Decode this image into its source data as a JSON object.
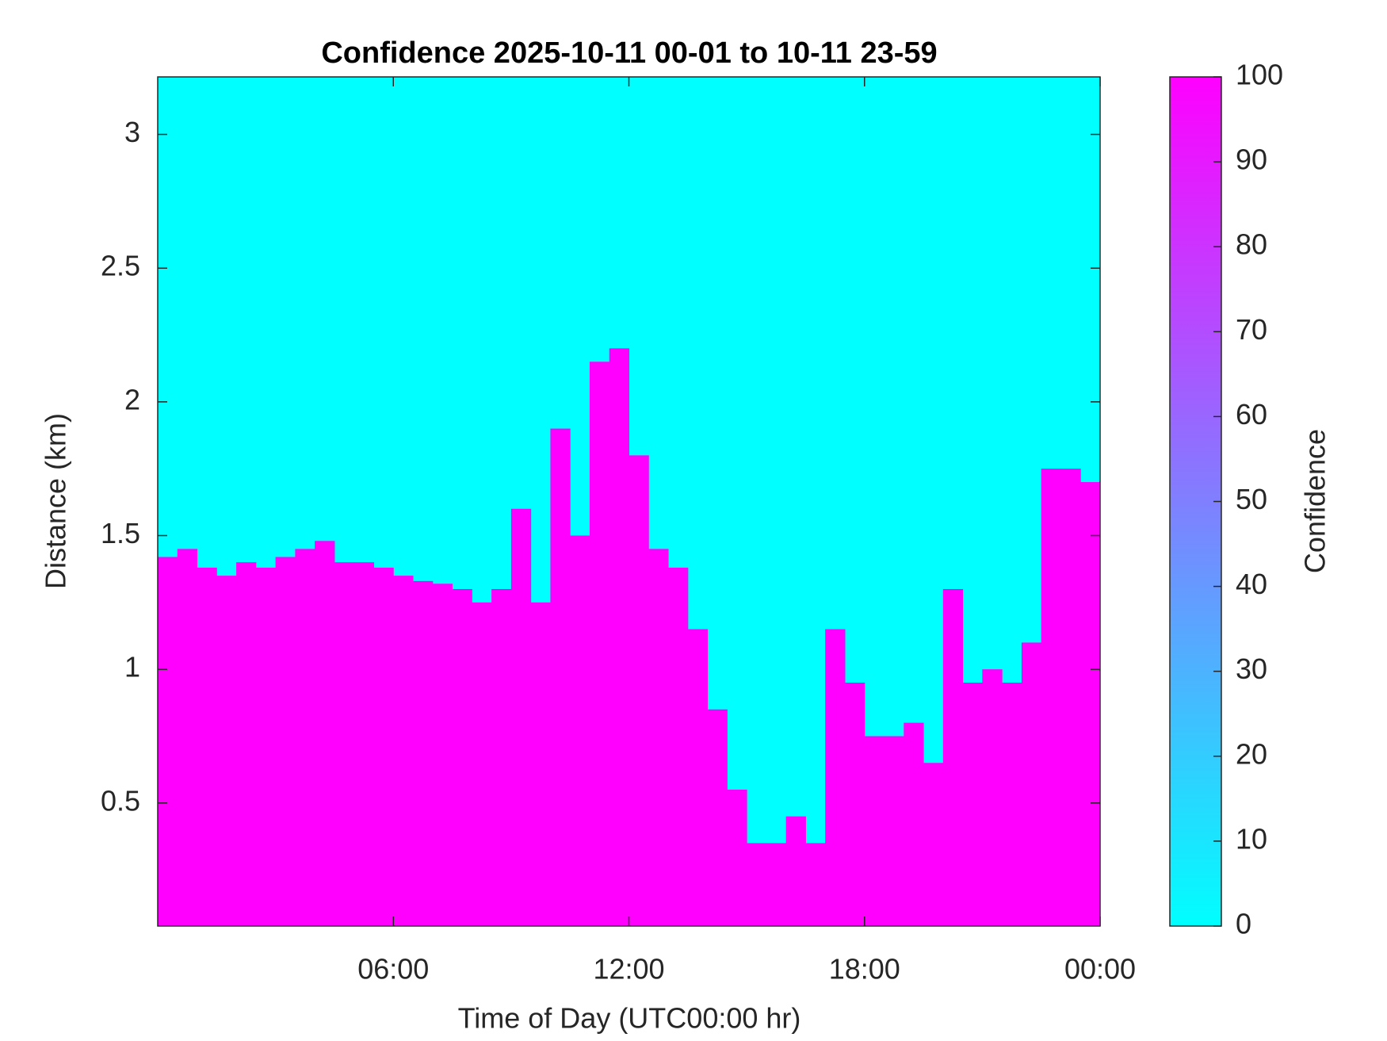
{
  "chart_data": {
    "type": "heatmap",
    "title": "Confidence 2025-10-11 00-01 to 10-11 23-59",
    "xlabel": "Time of Day (UTC00:00 hr)",
    "ylabel": "Distance (km)",
    "colorbar_label": "Confidence",
    "x": [
      0.25,
      0.75,
      1.25,
      1.75,
      2.25,
      2.75,
      3.25,
      3.75,
      4.25,
      4.75,
      5.25,
      5.75,
      6.25,
      6.75,
      7.25,
      7.75,
      8.25,
      8.75,
      9.25,
      9.75,
      10.25,
      10.75,
      11.25,
      11.75,
      12.25,
      12.75,
      13.25,
      13.75,
      14.25,
      14.75,
      15.25,
      15.75,
      16.25,
      16.75,
      17.25,
      17.75,
      18.25,
      18.75,
      19.25,
      19.75,
      20.25,
      20.75,
      21.25,
      21.75,
      22.25,
      22.75,
      23.25,
      23.75
    ],
    "values": [
      1.42,
      1.45,
      1.38,
      1.35,
      1.4,
      1.38,
      1.42,
      1.45,
      1.48,
      1.4,
      1.4,
      1.38,
      1.35,
      1.33,
      1.32,
      1.3,
      1.25,
      1.3,
      1.6,
      1.25,
      1.9,
      1.5,
      2.15,
      2.2,
      1.8,
      1.45,
      1.38,
      1.15,
      0.85,
      0.55,
      0.35,
      0.35,
      0.45,
      0.35,
      1.15,
      0.95,
      0.75,
      0.75,
      0.8,
      0.65,
      1.3,
      0.95,
      1.0,
      0.95,
      1.1,
      1.75,
      1.75,
      1.7
    ],
    "color_low": "#00ffff",
    "color_high": "#ff00ff",
    "xlim": [
      0,
      24
    ],
    "xticks": [
      {
        "value": 6,
        "label": "06:00"
      },
      {
        "value": 12,
        "label": "12:00"
      },
      {
        "value": 18,
        "label": "18:00"
      },
      {
        "value": 24,
        "label": "00:00"
      }
    ],
    "ylim": [
      0.04,
      3.215
    ],
    "yticks": [
      0.5,
      1,
      1.5,
      2,
      2.5,
      3
    ],
    "clim": [
      0,
      100
    ],
    "cticks": [
      0,
      10,
      20,
      30,
      40,
      50,
      60,
      70,
      80,
      90,
      100
    ]
  }
}
